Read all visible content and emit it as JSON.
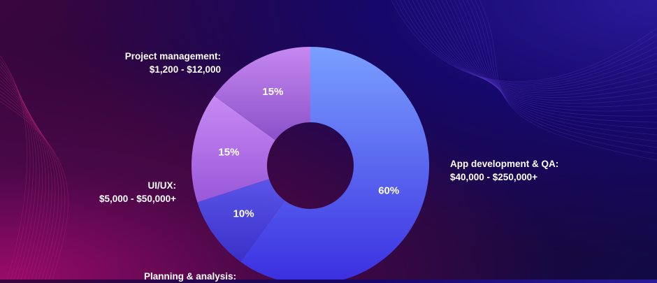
{
  "chart_data": {
    "type": "pie",
    "subtype": "donut",
    "slices": [
      {
        "label": "App development & QA:",
        "range": "$40,000 - $250,000+",
        "value": 60,
        "pct_label": "60%",
        "color": "#5a55f0"
      },
      {
        "label": "Planning & analysis:",
        "range": "",
        "value": 10,
        "pct_label": "10%",
        "color": "#4a48d8"
      },
      {
        "label": "UI/UX:",
        "range": "$5,000 - $50,000+",
        "value": 15,
        "pct_label": "15%",
        "color": "#b070e8"
      },
      {
        "label": "Project management:",
        "range": "$1,200 - $12,000",
        "value": 15,
        "pct_label": "15%",
        "color": "#a660d8"
      }
    ],
    "start_angle_deg": 0,
    "direction": "clockwise"
  }
}
